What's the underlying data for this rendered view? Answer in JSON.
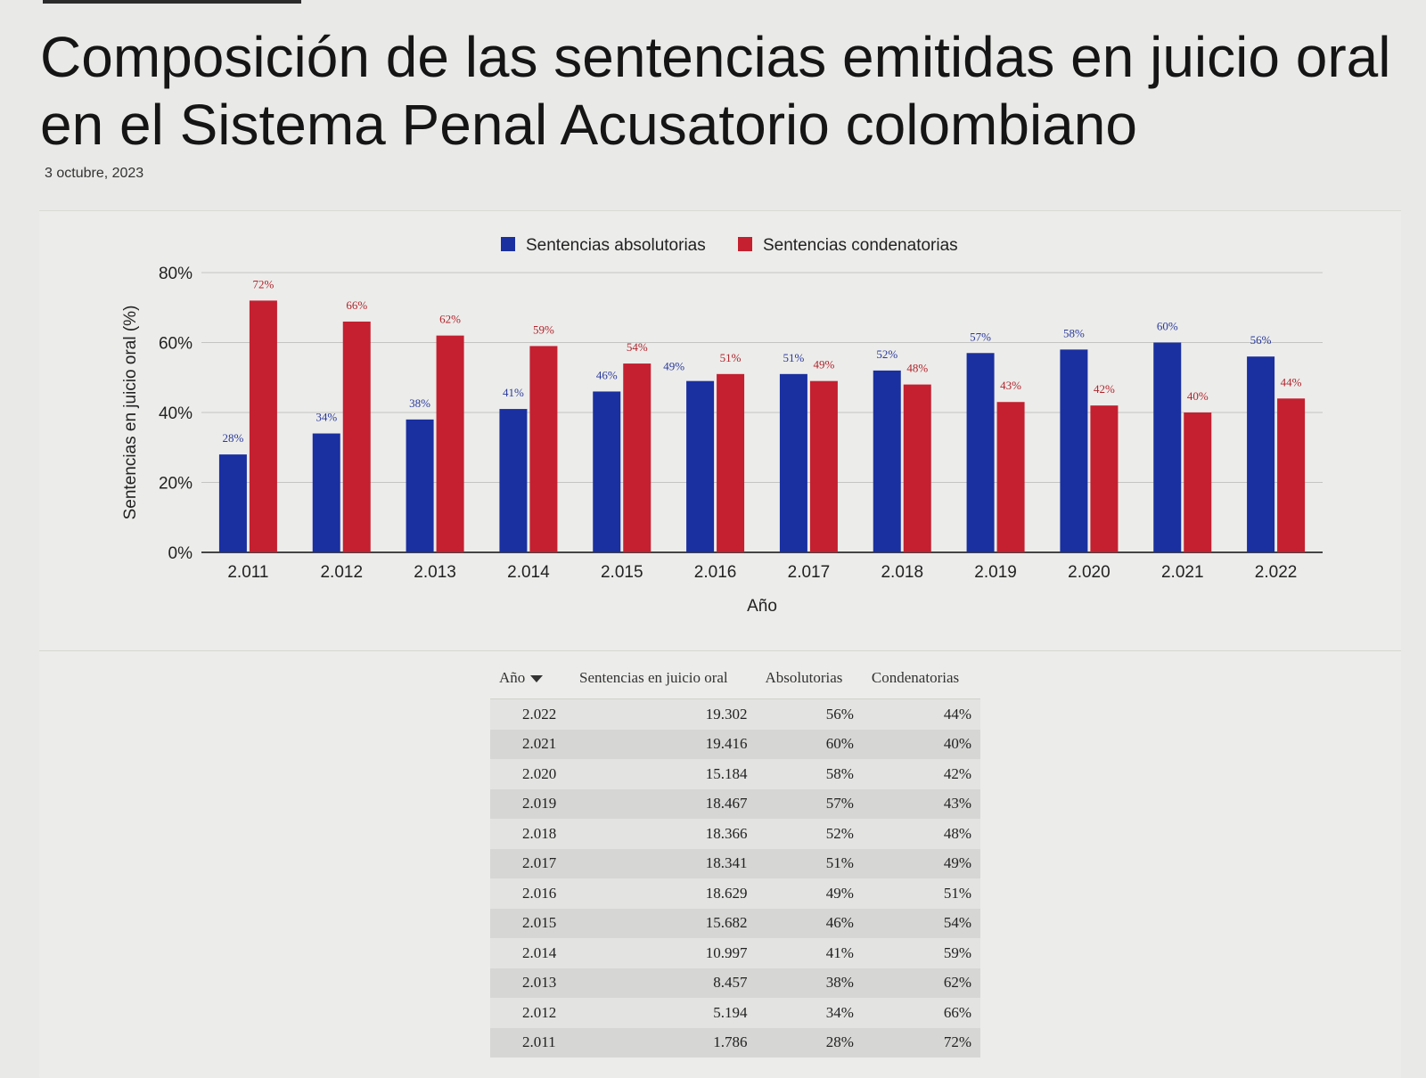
{
  "page": {
    "title": "Composición de las sentencias emitidas en juicio oral en el Sistema Penal Acusatorio colombiano",
    "date": "3 octubre, 2023"
  },
  "chart_data": {
    "type": "bar",
    "title": "",
    "xlabel": "Año",
    "ylabel": "Sentencias en juicio oral (%)",
    "ylim": [
      0,
      80
    ],
    "yticks": [
      "0%",
      "20%",
      "40%",
      "60%",
      "80%"
    ],
    "grid": true,
    "legend_position": "top",
    "categories": [
      "2.011",
      "2.012",
      "2.013",
      "2.014",
      "2.015",
      "2.016",
      "2.017",
      "2.018",
      "2.019",
      "2.020",
      "2.021",
      "2.022"
    ],
    "series": [
      {
        "name": "Sentencias absolutorias",
        "color": "#1a2fa0",
        "values": [
          28,
          34,
          38,
          41,
          46,
          49,
          51,
          52,
          57,
          58,
          60,
          56
        ],
        "labels": [
          "28%",
          "34%",
          "38%",
          "41%",
          "46%",
          "49%",
          "51%",
          "52%",
          "57%",
          "58%",
          "60%",
          "56%"
        ]
      },
      {
        "name": "Sentencias condenatorias",
        "color": "#c42030",
        "values": [
          72,
          66,
          62,
          59,
          54,
          51,
          49,
          48,
          43,
          42,
          40,
          44
        ],
        "labels": [
          "72%",
          "66%",
          "62%",
          "59%",
          "54%",
          "51%",
          "49%",
          "48%",
          "43%",
          "42%",
          "40%",
          "44%"
        ]
      }
    ]
  },
  "table": {
    "headers": [
      "Año",
      "Sentencias en juicio oral",
      "Absolutorias",
      "Condenatorias"
    ],
    "rows": [
      [
        "2.022",
        "19.302",
        "56%",
        "44%"
      ],
      [
        "2.021",
        "19.416",
        "60%",
        "40%"
      ],
      [
        "2.020",
        "15.184",
        "58%",
        "42%"
      ],
      [
        "2.019",
        "18.467",
        "57%",
        "43%"
      ],
      [
        "2.018",
        "18.366",
        "52%",
        "48%"
      ],
      [
        "2.017",
        "18.341",
        "51%",
        "49%"
      ],
      [
        "2.016",
        "18.629",
        "49%",
        "51%"
      ],
      [
        "2.015",
        "15.682",
        "46%",
        "54%"
      ],
      [
        "2.014",
        "10.997",
        "41%",
        "59%"
      ],
      [
        "2.013",
        "8.457",
        "38%",
        "62%"
      ],
      [
        "2.012",
        "5.194",
        "34%",
        "66%"
      ],
      [
        "2.011",
        "1.786",
        "28%",
        "72%"
      ]
    ]
  }
}
